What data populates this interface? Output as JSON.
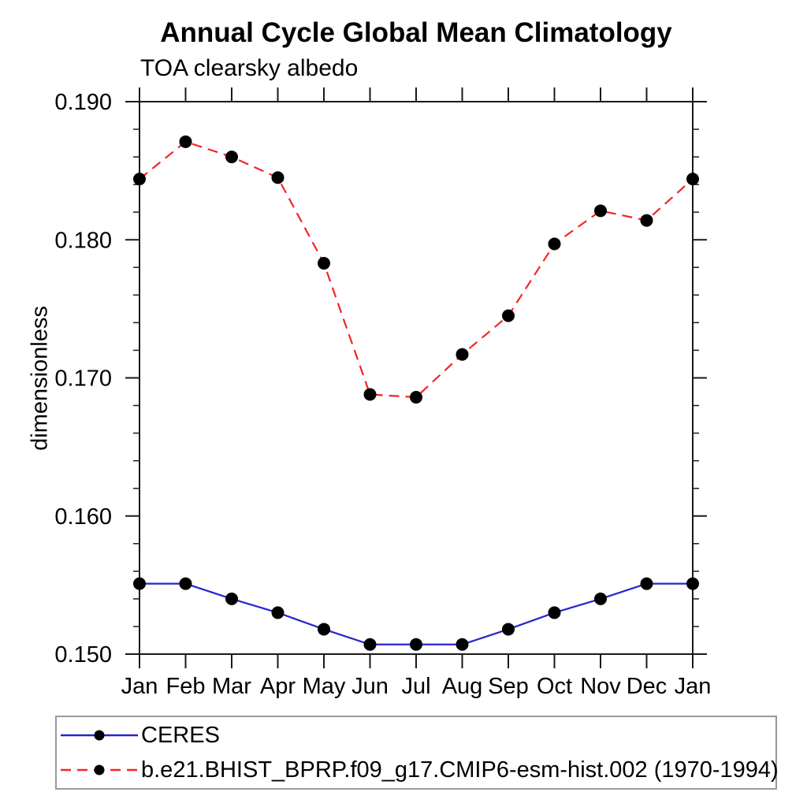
{
  "title": "Annual Cycle Global Mean Climatology",
  "subtitle": "TOA clearsky albedo",
  "colors": {
    "axis": "#1a1a1a",
    "text": "#000000",
    "marker": "#000000",
    "legend_border": "#999999",
    "ceres_blue": "#2525cf",
    "model_red": "#f32525"
  },
  "chart_data": {
    "type": "line",
    "title": "Annual Cycle Global Mean Climatology",
    "subtitle": "TOA clearsky albedo",
    "xlabel": "",
    "ylabel": "dimensionless",
    "categories": [
      "Jan",
      "Feb",
      "Mar",
      "Apr",
      "May",
      "Jun",
      "Jul",
      "Aug",
      "Sep",
      "Oct",
      "Nov",
      "Dec",
      "Jan"
    ],
    "ylim": [
      0.15,
      0.19
    ],
    "y_major_ticks": [
      0.15,
      0.16,
      0.17,
      0.18,
      0.19
    ],
    "y_tick_labels": [
      "0.150",
      "0.160",
      "0.170",
      "0.180",
      "0.190"
    ],
    "y_minor_step": 0.002,
    "grid": false,
    "legend_position": "bottom-left-box",
    "marker": {
      "shape": "circle",
      "color": "#000000",
      "radius": 8
    },
    "series": [
      {
        "name": "CERES",
        "color": "#2525cf",
        "line_style": "solid",
        "values": [
          0.1551,
          0.1551,
          0.154,
          0.153,
          0.1518,
          0.1507,
          0.1507,
          0.1507,
          0.1518,
          0.153,
          0.154,
          0.1551,
          0.1551
        ]
      },
      {
        "name": "b.e21.BHIST_BPRP.f09_g17.CMIP6-esm-hist.002 (1970-1994)",
        "color": "#f32525",
        "line_style": "dashed",
        "dash": "13 8",
        "values": [
          0.1844,
          0.1871,
          0.186,
          0.1845,
          0.1783,
          0.1688,
          0.1686,
          0.1717,
          0.1745,
          0.1797,
          0.1821,
          0.1814,
          0.1844
        ]
      }
    ]
  }
}
